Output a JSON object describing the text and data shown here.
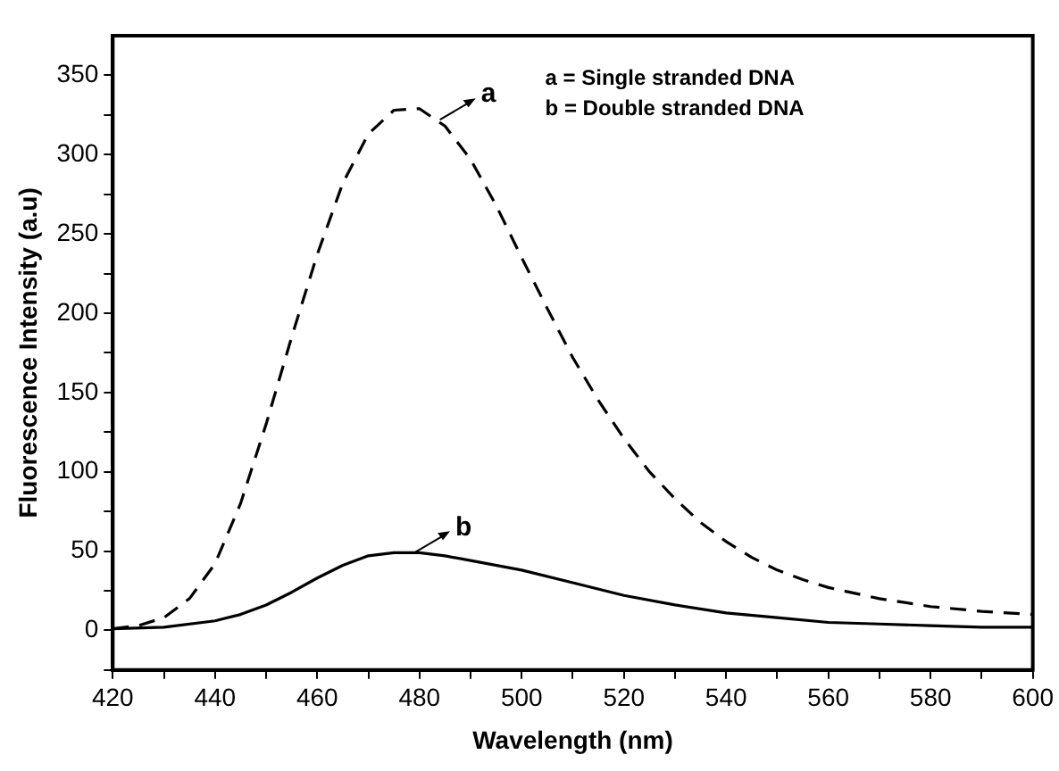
{
  "chart_data": {
    "type": "line",
    "xlabel": "Wavelength (nm)",
    "ylabel": "Fluorescence Intensity (a.u)",
    "xlim": [
      420,
      600
    ],
    "ylim": [
      -25,
      375
    ],
    "xticks": [
      420,
      {
        "value": 430,
        "label": null
      },
      440,
      {
        "value": 450,
        "label": null
      },
      460,
      {
        "value": 470,
        "label": null
      },
      480,
      {
        "value": 490,
        "label": null
      },
      500,
      {
        "value": 510,
        "label": null
      },
      520,
      {
        "value": 530,
        "label": null
      },
      540,
      {
        "value": 550,
        "label": null
      },
      560,
      {
        "value": 570,
        "label": null
      },
      580,
      {
        "value": 590,
        "label": null
      },
      600
    ],
    "yticks": [
      {
        "value": -25,
        "label": null
      },
      0,
      {
        "value": 25,
        "label": null
      },
      50,
      {
        "value": 75,
        "label": null
      },
      100,
      {
        "value": 125,
        "label": null
      },
      150,
      {
        "value": 175,
        "label": null
      },
      200,
      {
        "value": 225,
        "label": null
      },
      250,
      {
        "value": 275,
        "label": null
      },
      300,
      {
        "value": 325,
        "label": null
      },
      350
    ],
    "grid": false,
    "legend": false,
    "marker": "none",
    "annotations": [
      {
        "text": "a",
        "x": 484,
        "y": 322
      },
      {
        "text": "b",
        "x": 479,
        "y": 49
      },
      "a = Single stranded DNA",
      "b = Double stranded DNA"
    ],
    "series": [
      {
        "color": "#000000",
        "line_style": "dashed",
        "x": [
          420,
          425,
          430,
          435,
          440,
          445,
          450,
          455,
          460,
          465,
          470,
          475,
          480,
          485,
          490,
          495,
          500,
          505,
          510,
          515,
          520,
          525,
          530,
          535,
          540,
          545,
          550,
          555,
          560,
          570,
          580,
          590,
          600
        ],
        "values": [
          1,
          3,
          8,
          20,
          42,
          80,
          130,
          185,
          237,
          282,
          313,
          328,
          329,
          318,
          297,
          268,
          235,
          203,
          172,
          145,
          121,
          100,
          83,
          68,
          56,
          46,
          38,
          32,
          27,
          20,
          15,
          12,
          10
        ]
      },
      {
        "color": "#000000",
        "line_style": "solid",
        "x": [
          420,
          430,
          440,
          445,
          450,
          455,
          460,
          465,
          470,
          475,
          480,
          485,
          490,
          500,
          510,
          520,
          530,
          540,
          550,
          560,
          570,
          580,
          590,
          600
        ],
        "values": [
          1,
          2,
          6,
          10,
          16,
          24,
          33,
          41,
          47,
          49,
          49,
          47,
          44,
          38,
          30,
          22,
          16,
          11,
          8,
          5,
          4,
          3,
          2,
          2
        ]
      }
    ]
  }
}
